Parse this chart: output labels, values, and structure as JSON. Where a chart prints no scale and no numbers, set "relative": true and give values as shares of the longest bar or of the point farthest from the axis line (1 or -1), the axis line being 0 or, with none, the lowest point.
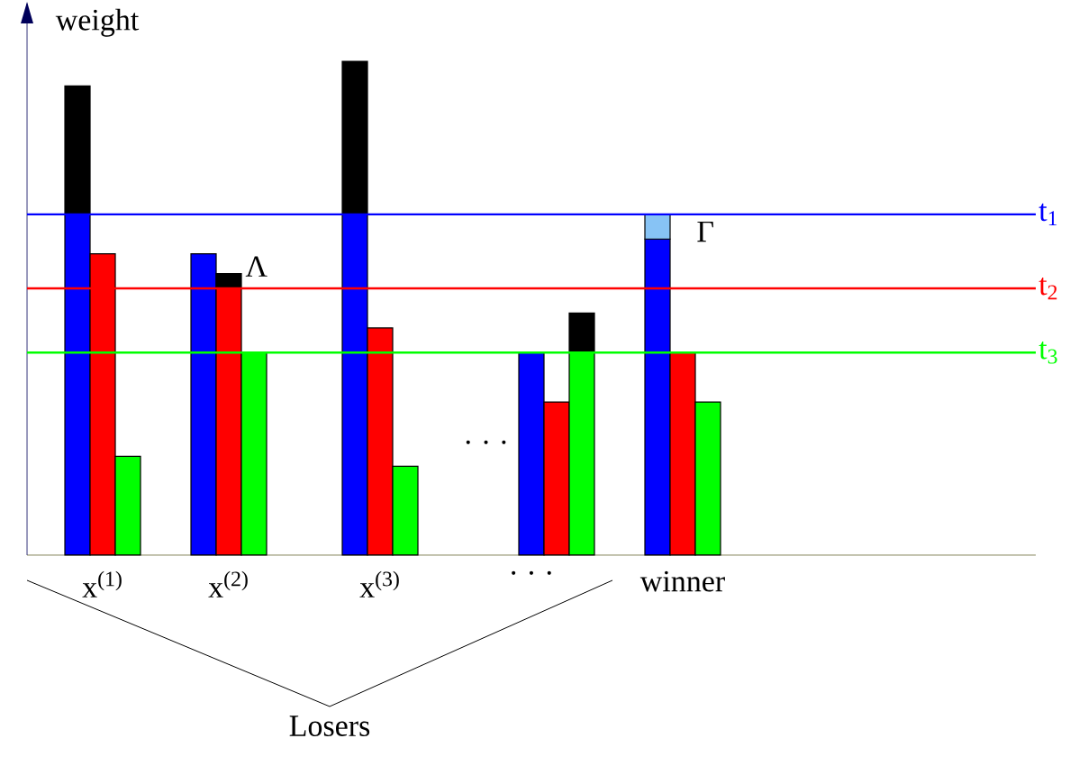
{
  "chart_data": {
    "type": "bar",
    "relative": true,
    "stacked": true,
    "ylabel": "weight",
    "categories": [
      null,
      null,
      null,
      "x$^{(1)}$",
      null,
      null,
      null,
      null,
      "x$^{(2)}$",
      null,
      null,
      null,
      null,
      null,
      "x$^{(3)}$",
      null,
      null,
      null,
      null,
      null,
      "· · ·",
      null,
      null,
      null,
      null,
      null,
      "winner",
      null
    ],
    "series": [
      {
        "colors": [
          null,
          null,
          "#0000ff",
          "#ff0000",
          "#00ff00",
          null,
          null,
          "#0000ff",
          "#ff0000",
          "#00ff00",
          null,
          null,
          null,
          "#0000ff",
          "#ff0000",
          "#00ff00",
          null,
          null,
          null,
          null,
          "#0000ff",
          "#ff0000",
          "#00ff00",
          null,
          null,
          "#0000ff",
          "#ff0000",
          "#00ff00"
        ],
        "values": [
          null,
          null,
          0.69,
          0.61,
          0.2,
          null,
          null,
          0.61,
          0.54,
          0.41,
          null,
          null,
          null,
          0.69,
          0.46,
          0.18,
          null,
          null,
          null,
          null,
          0.41,
          0.31,
          0.41,
          null,
          null,
          0.64,
          0.41,
          0.31
        ]
      },
      {
        "colors": [
          null,
          null,
          "#000000",
          null,
          null,
          null,
          null,
          null,
          "#000000",
          null,
          null,
          null,
          null,
          "#000000",
          null,
          null,
          null,
          null,
          null,
          null,
          null,
          null,
          "#000000",
          null,
          null,
          "#87c3f5",
          null,
          null
        ],
        "values": [
          null,
          null,
          0.26,
          null,
          null,
          null,
          null,
          null,
          0.03,
          null,
          null,
          null,
          null,
          0.31,
          null,
          null,
          null,
          null,
          null,
          null,
          null,
          null,
          0.08,
          null,
          null,
          0.05,
          null,
          null
        ]
      }
    ],
    "ref_lines": [
      {
        "axis": "y",
        "value": 0.69,
        "label": "t$_{1}$",
        "color": "#0000ff"
      },
      {
        "axis": "y",
        "value": 0.54,
        "label": "t$_{2}$",
        "color": "#ff0000"
      },
      {
        "axis": "y",
        "value": 0.41,
        "label": "t$_{3}$",
        "color": "#00ff00"
      }
    ],
    "annotations": [
      "· · ·",
      {
        "text": "Λ",
        "x": "x$^{(2)}$",
        "y": 0.57
      },
      "Γ",
      "Losers"
    ]
  }
}
